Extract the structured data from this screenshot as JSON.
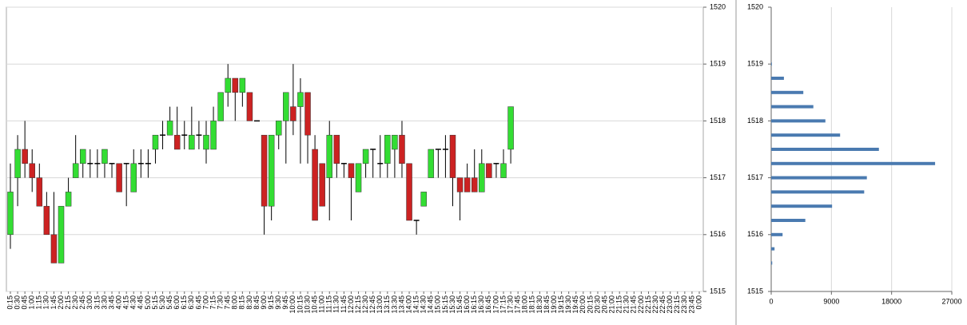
{
  "chart_data": [
    {
      "type": "candlestick",
      "categories": [
        "0:15",
        "0:30",
        "0:45",
        "1:00",
        "1:15",
        "1:30",
        "1:45",
        "2:00",
        "2:15",
        "2:30",
        "2:45",
        "3:00",
        "3:15",
        "3:30",
        "3:45",
        "4:00",
        "4:15",
        "4:30",
        "4:45",
        "5:00",
        "5:15",
        "5:30",
        "5:45",
        "6:00",
        "6:15",
        "6:30",
        "6:45",
        "7:00",
        "7:15",
        "7:30",
        "7:45",
        "8:00",
        "8:15",
        "8:30",
        "8:45",
        "9:00",
        "9:15",
        "9:30",
        "9:45",
        "10:00",
        "10:15",
        "10:30",
        "10:45",
        "11:00",
        "11:15",
        "11:30",
        "11:45",
        "12:00",
        "12:15",
        "12:30",
        "12:45",
        "13:00",
        "13:15",
        "13:30",
        "13:45",
        "14:00",
        "14:15",
        "14:30",
        "14:45",
        "15:00",
        "15:15",
        "15:30",
        "15:45",
        "16:00",
        "16:15",
        "16:30",
        "16:45",
        "17:00",
        "17:15",
        "17:30",
        "17:45",
        "18:00",
        "18:15",
        "18:30",
        "18:45",
        "19:00",
        "19:15",
        "19:30",
        "19:45",
        "20:00",
        "20:15",
        "20:30",
        "20:45",
        "21:00",
        "21:15",
        "21:30",
        "21:45",
        "22:00",
        "22:15",
        "22:30",
        "22:45",
        "23:00",
        "23:15",
        "23:30",
        "23:45",
        "0:00"
      ],
      "open": [
        1516,
        1517,
        1517.5,
        1517.25,
        1517,
        1516.5,
        1516,
        1515.5,
        1516.5,
        1517,
        1517.25,
        1517.25,
        1517.25,
        1517.25,
        1517.25,
        1517.25,
        1517.25,
        1516.75,
        1517.25,
        1517.25,
        1517.5,
        1517.75,
        1517.75,
        1517.75,
        1517.75,
        1517.5,
        1517.75,
        1517.5,
        1517.5,
        1518,
        1518.5,
        1518.75,
        1518.5,
        1518.5,
        1518,
        1517.75,
        1516.5,
        1517.75,
        1518,
        1518.25,
        1518.25,
        1518.5,
        1517.5,
        1517.25,
        1517,
        1517.75,
        1517.25,
        1517.25,
        1516.75,
        1517.25,
        1517.5,
        1517.25,
        1517.25,
        1517.5,
        1517.75,
        1517.25,
        1516.25,
        1516.5,
        1517,
        1517.5,
        1517.5,
        1517.75,
        1517,
        1517,
        1517,
        1516.75,
        1517.25,
        1517.25,
        1517,
        1517.5,
        null,
        null,
        null,
        null,
        null,
        null,
        null,
        null,
        null,
        null,
        null,
        null,
        null,
        null,
        null,
        null,
        null,
        null,
        null,
        null,
        null,
        null,
        null,
        null,
        null,
        null
      ],
      "high": [
        1517.25,
        1517.75,
        1518,
        1517.5,
        1517.25,
        1516.75,
        1516.75,
        1516.5,
        1517,
        1517.75,
        1517.5,
        1517.5,
        1517.5,
        1517.5,
        1517.25,
        1517.25,
        1517.25,
        1517.5,
        1517.5,
        1517.5,
        1517.75,
        1518,
        1518.25,
        1518.25,
        1518,
        1518.25,
        1518,
        1518,
        1518.25,
        1518.5,
        1519,
        1518.75,
        1518.75,
        1518.5,
        1518,
        1517.75,
        1517.75,
        1518,
        1518.5,
        1519,
        1518.75,
        1518.5,
        1517.75,
        1517.25,
        1518,
        1517.75,
        1517.25,
        1517.25,
        1517.25,
        1517.5,
        1517.5,
        1517.75,
        1517.75,
        1517.75,
        1518,
        1517.25,
        1516.25,
        1516.75,
        1517.5,
        1517.5,
        1517.75,
        1517.75,
        1517,
        1517.25,
        1517.5,
        1517.5,
        1517.25,
        1517.25,
        1517.5,
        1518.25,
        null,
        null,
        null,
        null,
        null,
        null,
        null,
        null,
        null,
        null,
        null,
        null,
        null,
        null,
        null,
        null,
        null,
        null,
        null,
        null,
        null,
        null,
        null,
        null,
        null,
        null
      ],
      "low": [
        1515.75,
        1516.5,
        1517,
        1516.75,
        1516.5,
        1516,
        1515.5,
        1515.5,
        1516.5,
        1517,
        1517,
        1517,
        1517,
        1517,
        1517,
        1516.75,
        1516.5,
        1516.75,
        1517,
        1517,
        1517.25,
        1517.5,
        1517.75,
        1517.5,
        1517.5,
        1517.5,
        1517.5,
        1517.25,
        1517.5,
        1518,
        1518.25,
        1518,
        1518.25,
        1518,
        1518,
        1516,
        1516.25,
        1517.5,
        1517.25,
        1517.75,
        1517.25,
        1517.25,
        1516.25,
        1516.5,
        1516.25,
        1517,
        1517,
        1516.25,
        1516.75,
        1517,
        1517,
        1517,
        1517,
        1517,
        1517,
        1516.25,
        1516,
        1516.5,
        1517,
        1517,
        1517,
        1516.5,
        1516.25,
        1516.75,
        1516.75,
        1516.75,
        1517,
        1517,
        1517,
        1517.25,
        null,
        null,
        null,
        null,
        null,
        null,
        null,
        null,
        null,
        null,
        null,
        null,
        null,
        null,
        null,
        null,
        null,
        null,
        null,
        null,
        null,
        null,
        null,
        null,
        null,
        null
      ],
      "close": [
        1516.75,
        1517.5,
        1517.25,
        1517,
        1516.5,
        1516,
        1515.5,
        1516.5,
        1516.75,
        1517.25,
        1517.5,
        1517.25,
        1517.25,
        1517.5,
        1517.25,
        1516.75,
        1517.25,
        1517.25,
        1517.25,
        1517.25,
        1517.75,
        1517.75,
        1518,
        1517.5,
        1517.75,
        1517.75,
        1517.75,
        1517.75,
        1518,
        1518.5,
        1518.75,
        1518.5,
        1518.75,
        1518,
        1518,
        1516.5,
        1517.75,
        1518,
        1518.5,
        1518,
        1518.5,
        1517.75,
        1516.25,
        1516.5,
        1517.75,
        1517.25,
        1517.25,
        1517,
        1517.25,
        1517.5,
        1517.5,
        1517.25,
        1517.75,
        1517.75,
        1517.25,
        1516.25,
        1516.25,
        1516.75,
        1517.5,
        1517.5,
        1517.5,
        1517,
        1516.75,
        1516.75,
        1516.75,
        1517.25,
        1517,
        1517.25,
        1517.25,
        1518.25,
        null,
        null,
        null,
        null,
        null,
        null,
        null,
        null,
        null,
        null,
        null,
        null,
        null,
        null,
        null,
        null,
        null,
        null,
        null,
        null,
        null,
        null,
        null,
        null,
        null,
        null
      ],
      "up_color": "#33dd33",
      "down_color": "#cc2222",
      "ylim": [
        1515,
        1520
      ],
      "yticks": [
        1515,
        1516,
        1517,
        1518,
        1519,
        1520
      ],
      "grid": true
    },
    {
      "type": "bar",
      "orientation": "horizontal",
      "y": [
        1519,
        1518.75,
        1518.5,
        1518.25,
        1518,
        1517.75,
        1517.5,
        1517.25,
        1517,
        1516.75,
        1516.5,
        1516.25,
        1516,
        1515.75,
        1515.5
      ],
      "values": [
        100,
        1900,
        4800,
        6300,
        8100,
        10300,
        16100,
        24500,
        14300,
        13900,
        9100,
        5100,
        1700,
        500,
        150
      ],
      "color": "#4a7ab0",
      "ylim": [
        1515,
        1520
      ],
      "yticks": [
        1515,
        1516,
        1517,
        1518,
        1519,
        1520
      ],
      "xlim": [
        0,
        27000
      ],
      "xticks": [
        0,
        9000,
        18000,
        27000
      ],
      "grid": true
    }
  ]
}
